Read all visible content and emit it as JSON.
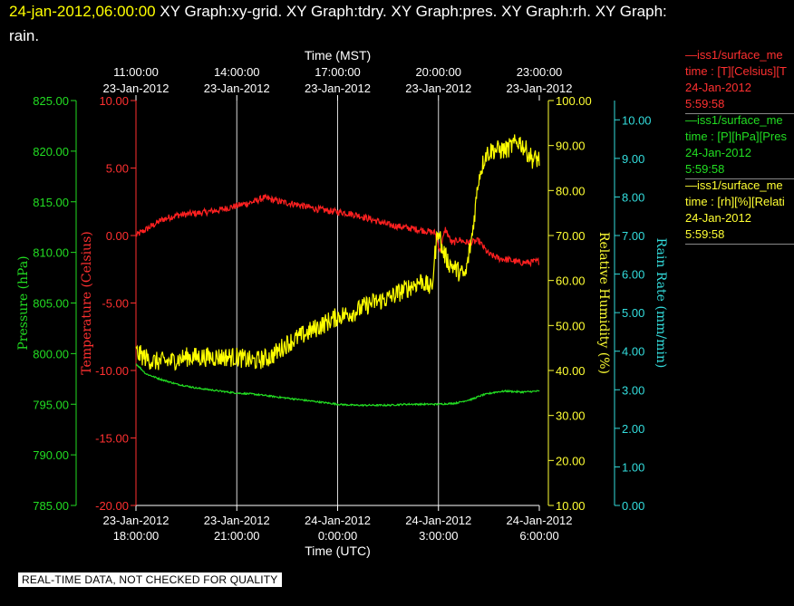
{
  "header": {
    "timestamp": "24-jan-2012,06:00:00",
    "title_line1": "XY Graph:xy-grid.  XY Graph:tdry.  XY Graph:pres.  XY Graph:rh.  XY Graph:",
    "title_line2": "rain."
  },
  "footer_text": "REAL-TIME DATA, NOT CHECKED FOR QUALITY",
  "legend": [
    {
      "line1": "—iss1/surface_me",
      "line2": "time : [T][Celsius][T",
      "line3": "24-Jan-2012",
      "line4": "5:59:58",
      "color": "#ff3030"
    },
    {
      "line1": "—iss1/surface_me",
      "line2": "time : [P][hPa][Pres",
      "line3": "24-Jan-2012",
      "line4": "5:59:58",
      "color": "#22dd22"
    },
    {
      "line1": "—iss1/surface_me",
      "line2": "time : [rh][%][Relati",
      "line3": "24-Jan-2012",
      "line4": "5:59:58",
      "color": "#ffff33"
    }
  ],
  "chart_data": {
    "type": "line",
    "x_top_label": "Time (MST)",
    "x_bottom_label": "Time (UTC)",
    "x_range_hours_utc": [
      18,
      30
    ],
    "x_ticks_top": [
      {
        "t": 18,
        "date": "23-Jan-2012",
        "time": "11:00:00"
      },
      {
        "t": 21,
        "date": "23-Jan-2012",
        "time": "14:00:00"
      },
      {
        "t": 24,
        "date": "23-Jan-2012",
        "time": "17:00:00"
      },
      {
        "t": 27,
        "date": "23-Jan-2012",
        "time": "20:00:00"
      },
      {
        "t": 30,
        "date": "23-Jan-2012",
        "time": "23:00:00"
      }
    ],
    "x_ticks_bottom": [
      {
        "t": 18,
        "date": "23-Jan-2012",
        "time": "18:00:00"
      },
      {
        "t": 21,
        "date": "23-Jan-2012",
        "time": "21:00:00"
      },
      {
        "t": 24,
        "date": "24-Jan-2012",
        "time": "0:00:00"
      },
      {
        "t": 27,
        "date": "24-Jan-2012",
        "time": "3:00:00"
      },
      {
        "t": 30,
        "date": "24-Jan-2012",
        "time": "6:00:00"
      }
    ],
    "grid_vertical": true,
    "axes": {
      "pressure": {
        "label": "Pressure (hPa)",
        "color": "#22dd22",
        "range": [
          785,
          825
        ],
        "ticks": [
          "785.00",
          "790.00",
          "795.00",
          "800.00",
          "805.00",
          "810.00",
          "815.00",
          "820.00",
          "825.00"
        ]
      },
      "temperature": {
        "label": "Temperature (Celsius)",
        "color": "#ff3030",
        "range": [
          -20,
          10
        ],
        "ticks": [
          "-20.00",
          "-15.00",
          "-10.00",
          "-5.00",
          "0.00",
          "5.00",
          "10.00"
        ]
      },
      "humidity": {
        "label": "Relative Humidity (%)",
        "color": "#ffff33",
        "range": [
          10,
          100
        ],
        "ticks": [
          "10.00",
          "20.00",
          "30.00",
          "40.00",
          "50.00",
          "60.00",
          "70.00",
          "80.00",
          "90.00",
          "100.00"
        ]
      },
      "rain": {
        "label": "Rain Rate (mm/min)",
        "color": "#33dddd",
        "range": [
          0,
          10.5
        ],
        "ticks": [
          "0.00",
          "1.00",
          "2.00",
          "3.00",
          "4.00",
          "5.00",
          "6.00",
          "7.00",
          "8.00",
          "9.00",
          "10.00"
        ]
      }
    },
    "series": [
      {
        "axis": "temperature",
        "color": "#ff2020",
        "noise": 0.25,
        "x": [
          18.0,
          18.4,
          18.8,
          19.2,
          19.6,
          20.0,
          20.5,
          21.0,
          21.5,
          21.8,
          22.3,
          22.8,
          23.3,
          23.8,
          24.2,
          24.6,
          25.0,
          25.5,
          26.0,
          26.5,
          26.9,
          27.05,
          27.2,
          27.4,
          27.6,
          27.8,
          28.0,
          28.2,
          28.5,
          28.8,
          29.1,
          29.4,
          29.7,
          30.0
        ],
        "y": [
          0.0,
          0.6,
          1.2,
          1.5,
          1.6,
          1.7,
          1.9,
          2.2,
          2.5,
          2.8,
          2.5,
          2.3,
          2.0,
          1.8,
          1.7,
          1.5,
          1.2,
          0.8,
          0.6,
          0.4,
          0.2,
          -1.2,
          0.5,
          -0.6,
          -0.3,
          -0.5,
          -0.5,
          -0.4,
          -1.4,
          -1.7,
          -1.8,
          -2.0,
          -2.0,
          -1.9
        ]
      },
      {
        "axis": "pressure",
        "color": "#22dd22",
        "noise": 0.08,
        "x": [
          18.0,
          18.3,
          18.7,
          19.2,
          19.8,
          20.5,
          21.0,
          21.5,
          22.0,
          22.5,
          23.0,
          23.5,
          24.0,
          24.5,
          25.0,
          25.5,
          26.0,
          26.5,
          27.0,
          27.5,
          28.0,
          28.3,
          28.7,
          29.0,
          29.5,
          30.0
        ],
        "y": [
          799.0,
          798.0,
          797.5,
          797.0,
          796.6,
          796.3,
          796.1,
          796.0,
          795.8,
          795.6,
          795.4,
          795.2,
          795.0,
          794.9,
          794.9,
          794.9,
          795.0,
          795.0,
          795.0,
          795.1,
          795.5,
          795.9,
          796.2,
          796.3,
          796.2,
          796.3
        ]
      },
      {
        "axis": "humidity",
        "color": "#ffff00",
        "noise": 2.2,
        "x": [
          18.0,
          18.5,
          19.0,
          19.5,
          20.0,
          20.5,
          21.0,
          21.5,
          22.0,
          22.5,
          23.0,
          23.5,
          24.0,
          24.5,
          25.0,
          25.5,
          26.0,
          26.5,
          26.8,
          26.9,
          27.0,
          27.1,
          27.3,
          27.6,
          27.8,
          28.0,
          28.2,
          28.4,
          28.6,
          28.8,
          29.0,
          29.2,
          29.4,
          29.6,
          29.8,
          30.0
        ],
        "y": [
          44,
          42,
          42,
          43,
          43,
          43,
          43,
          42,
          43,
          46,
          48,
          50,
          52,
          53,
          55,
          56,
          58,
          60,
          58,
          66,
          72,
          67,
          64,
          62,
          61,
          70,
          83,
          88,
          89,
          89,
          89,
          90,
          91,
          89,
          87,
          87
        ]
      }
    ]
  }
}
